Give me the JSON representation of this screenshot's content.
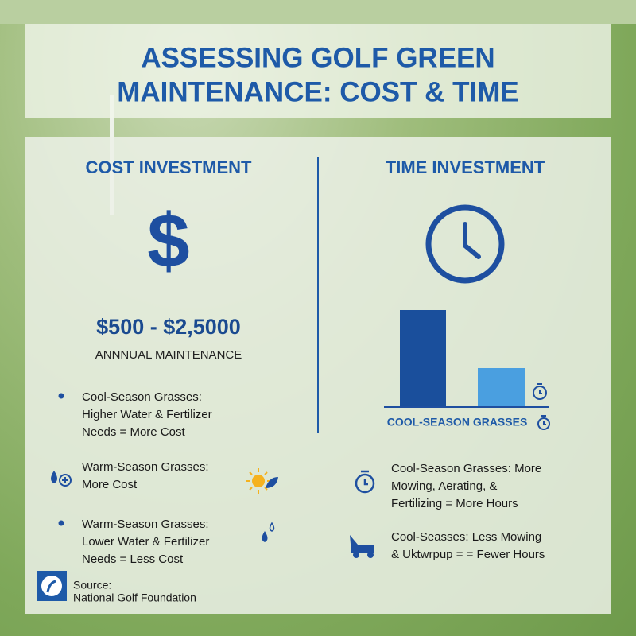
{
  "header": {
    "title_lines": [
      "ASSESSING GOLF GREEN",
      "MAINTENANCE: COST & TIME"
    ]
  },
  "cost": {
    "heading": "COST INVESTMENT",
    "symbol": "$",
    "amount": "$500 - $2,5000",
    "amount_label": "ANNNUAL MAINTENANCE",
    "items": [
      {
        "lines": [
          "Cool-Season Grasses:",
          "Higher Water & Fertilizer",
          "Needs = More Cost"
        ]
      },
      {
        "lines": [
          "Warm-Season Grasses:",
          "More Cost"
        ]
      },
      {
        "lines": [
          "Warm-Season Grasses:",
          "Lower Water & Fertilizer",
          "Needs = Less Cost"
        ]
      }
    ]
  },
  "time": {
    "heading": "TIME INVESTMENT",
    "chart_label": "COOL-SEASON GRASSES",
    "items": [
      {
        "lines": [
          "Cool-Season Grasses: More",
          "Mowing, Aerating, &",
          "Fertilizing = More Hours"
        ]
      },
      {
        "lines": [
          "Cool-Seasses: Less Mowing",
          "& Uktwrpup = = Fewer Hours"
        ]
      }
    ]
  },
  "source": {
    "label": "Source:",
    "name": "National Golf Foundation"
  }
}
